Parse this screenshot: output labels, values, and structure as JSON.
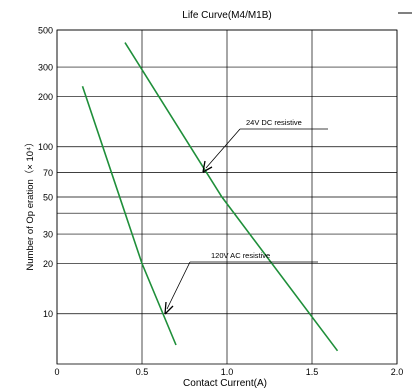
{
  "chart_data": {
    "type": "line",
    "title": "Life Curve(M4/M1B)",
    "xlabel": "Contact Current(A)",
    "ylabel": "Number of Op eration（× 10⁴）",
    "xlim": [
      0,
      2.0
    ],
    "ylim": [
      5,
      500
    ],
    "y_scale": "log",
    "x_ticks": [
      "0",
      "0.5",
      "1.0",
      "1.5",
      "2.0"
    ],
    "y_ticks": [
      "10",
      "20",
      "30",
      "50",
      "70",
      "100",
      "200",
      "300",
      "500"
    ],
    "grid": true,
    "series": [
      {
        "name": "24V DC resistive",
        "color": "#1f8f3a",
        "points": [
          [
            0.4,
            420
          ],
          [
            0.97,
            50
          ],
          [
            1.65,
            6
          ]
        ]
      },
      {
        "name": "120V AC resistive",
        "color": "#1f8f3a",
        "points": [
          [
            0.15,
            230
          ],
          [
            0.5,
            20
          ],
          [
            0.7,
            6.5
          ]
        ]
      }
    ]
  }
}
